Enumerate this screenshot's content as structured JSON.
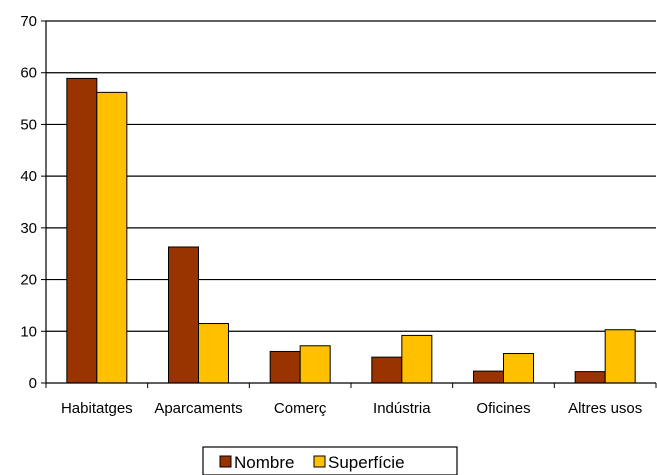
{
  "chart_data": {
    "type": "bar",
    "categories": [
      "Habitatges",
      "Aparcaments",
      "Comerç",
      "Indústria",
      "Oficines",
      "Altres usos"
    ],
    "series": [
      {
        "name": "Nombre",
        "color": "#993300",
        "values": [
          58.9,
          26.3,
          6.1,
          5.0,
          2.3,
          2.2
        ]
      },
      {
        "name": "Superfície",
        "color": "#FFC000",
        "values": [
          56.2,
          11.5,
          7.2,
          9.2,
          5.7,
          10.3
        ]
      }
    ],
    "yticks": [
      "0",
      "10",
      "20",
      "30",
      "40",
      "50",
      "60",
      "70"
    ],
    "ylim": [
      0,
      70
    ],
    "grid": true,
    "legend_position": "bottom-center"
  }
}
